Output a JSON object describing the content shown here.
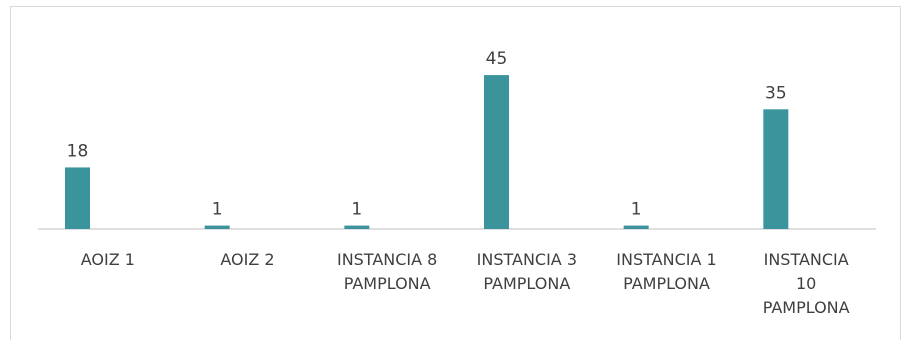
{
  "chart_data": {
    "type": "bar",
    "categories": [
      [
        "AOIZ 1"
      ],
      [
        "AOIZ 2"
      ],
      [
        "INSTANCIA 8",
        "PAMPLONA"
      ],
      [
        "INSTANCIA 3",
        "PAMPLONA"
      ],
      [
        "INSTANCIA 1",
        "PAMPLONA"
      ],
      [
        "INSTANCIA",
        "10",
        "PAMPLONA"
      ]
    ],
    "values": [
      18,
      1,
      1,
      45,
      1,
      35
    ],
    "data_labels": [
      "18",
      "1",
      "1",
      "45",
      "1",
      "35"
    ],
    "bar_color": "#3b949c",
    "axis_color": "#bfbfbf",
    "grid": false,
    "legend": "none",
    "ylim": [
      0,
      50
    ]
  }
}
